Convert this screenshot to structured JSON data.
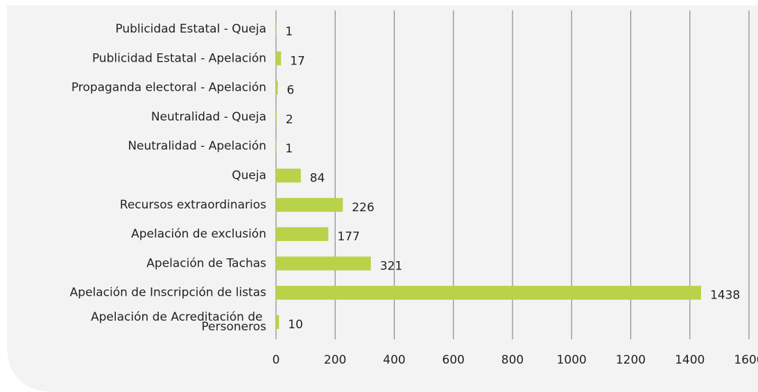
{
  "chart_data": {
    "type": "bar",
    "orientation": "horizontal",
    "categories": [
      "Publicidad Estatal - Queja",
      "Publicidad Estatal - Apelación",
      "Propaganda electoral - Apelación",
      "Neutralidad - Queja",
      "Neutralidad - Apelación",
      "Queja",
      "Recursos extraordinarios",
      "Apelación de exclusión",
      "Apelación de Tachas",
      "Apelación de Inscripción de listas",
      "Apelación de Acreditación de Personeros"
    ],
    "values": [
      1,
      17,
      6,
      2,
      1,
      84,
      226,
      177,
      321,
      1438,
      10
    ],
    "color": "#b8d34a",
    "xlim": [
      0,
      1600
    ],
    "xticks": [
      0,
      200,
      400,
      600,
      800,
      1000,
      1200,
      1400,
      1600
    ],
    "grid": true
  }
}
